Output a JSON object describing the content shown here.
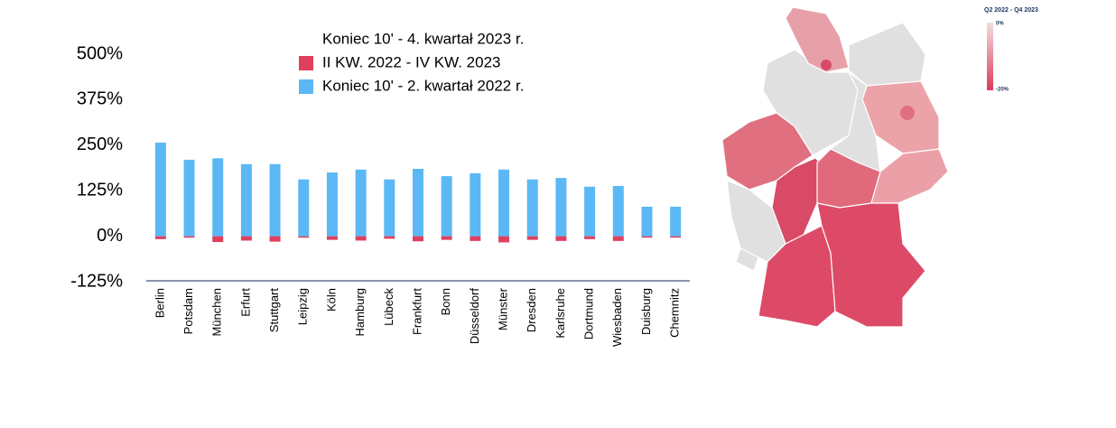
{
  "chart_data": {
    "type": "bar",
    "categories": [
      "Berlin",
      "Potsdam",
      "München",
      "Erfurt",
      "Stuttgart",
      "Leipzig",
      "Köln",
      "Hamburg",
      "Lübeck",
      "Frankfurt",
      "Bonn",
      "Düsseldorf",
      "Münster",
      "Dresden",
      "Karlsruhe",
      "Dortmund",
      "Wiesbaden",
      "Duisburg",
      "Chemnitz"
    ],
    "series": [
      {
        "name": "Koniec 10' - 4. kwartał 2023 r.",
        "color": "#ffffff",
        "values": [
          null,
          null,
          null,
          null,
          null,
          null,
          null,
          null,
          null,
          null,
          null,
          null,
          null,
          null,
          null,
          null,
          null,
          null,
          null
        ]
      },
      {
        "name": "II KW. 2022 - IV KW. 2023",
        "color": "#e0405e",
        "values": [
          -8,
          -4,
          -16,
          -12,
          -15,
          -4,
          -10,
          -12,
          -7,
          -14,
          -10,
          -13,
          -17,
          -10,
          -13,
          -8,
          -13,
          -4,
          -4
        ]
      },
      {
        "name": "Koniec 10' - 2. kwartał 2022 r.",
        "color": "#5bb8f5",
        "values": [
          257,
          210,
          214,
          198,
          198,
          156,
          175,
          183,
          156,
          185,
          165,
          173,
          183,
          156,
          160,
          136,
          138,
          81,
          81
        ]
      }
    ],
    "stacked": true,
    "ylim": [
      -125,
      500
    ],
    "yticks": [
      {
        "value": 500,
        "label": "500%"
      },
      {
        "value": 375,
        "label": "375%"
      },
      {
        "value": 250,
        "label": "250%"
      },
      {
        "value": 125,
        "label": "125%"
      },
      {
        "value": 0,
        "label": "0%"
      },
      {
        "value": -125,
        "label": "-125%"
      }
    ],
    "grid": false
  },
  "map": {
    "legend_title": "Q2 2022 - Q4 2023",
    "legend_top": "0%",
    "legend_bottom": "-20%"
  }
}
